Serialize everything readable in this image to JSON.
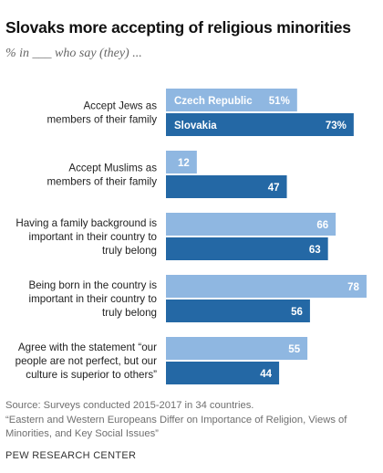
{
  "title": "Slovaks more accepting of religious minorities",
  "subtitle": "% in ___ who say (they) ...",
  "colors": {
    "light": "#8fb7e1",
    "dark": "#2468a5",
    "label_text": "#ffffff"
  },
  "chart_data": {
    "type": "bar",
    "orientation": "horizontal",
    "categories": [
      [
        "Accept Jews as",
        "members of their family"
      ],
      [
        "Accept Muslims as",
        "members of their family"
      ],
      [
        "Having a family background is",
        "important in their country to",
        "truly belong"
      ],
      [
        "Being born in the country is",
        "important in their country to",
        "truly belong"
      ],
      [
        "Agree with the statement “our",
        "people are not perfect, but our",
        "culture is superior to others”"
      ]
    ],
    "series": [
      {
        "name": "Czech Republic",
        "values": [
          51,
          12,
          66,
          78,
          55
        ]
      },
      {
        "name": "Slovakia",
        "values": [
          73,
          47,
          63,
          56,
          44
        ]
      }
    ],
    "value_labels": [
      [
        "51%",
        "12",
        "66",
        "78",
        "55"
      ],
      [
        "73%",
        "47",
        "63",
        "56",
        "44"
      ]
    ],
    "legend_placement": "inside-first-bars",
    "grid": false
  },
  "footer": {
    "source": "Source: Surveys conducted 2015-2017 in 34 countries.",
    "quote_line1": "“Eastern and Western Europeans Differ on Importance of Religion, Views of",
    "quote_line2": "Minorities, and Key Social Issues”",
    "brand": "PEW RESEARCH CENTER"
  }
}
